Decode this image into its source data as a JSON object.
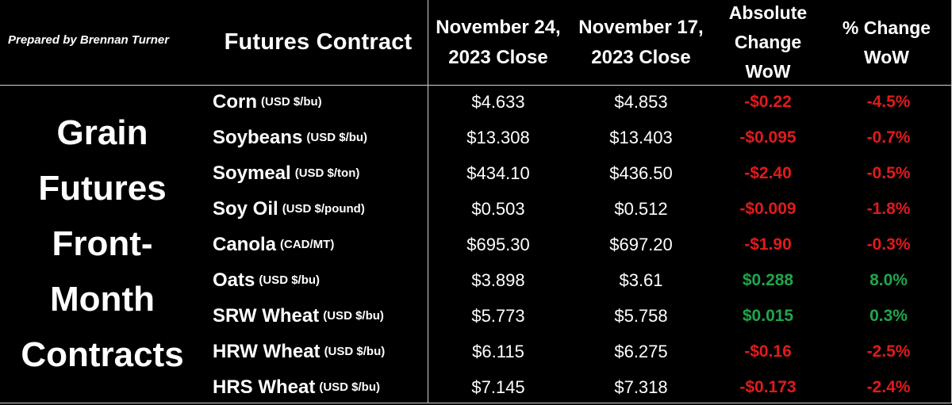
{
  "prepared_by": "Prepared by Brennan Turner",
  "header": {
    "contract": "Futures Contract",
    "nov24_line1": "November 24,",
    "nov24_line2": "2023 Close",
    "nov17_line1": "November 17,",
    "nov17_line2": "2023 Close",
    "abs_line1": "Absolute",
    "abs_line2": "Change",
    "abs_line3": "WoW",
    "pct_line1": "% Change",
    "pct_line2": "WoW"
  },
  "side_title": {
    "line1": "Grain",
    "line2": "Futures",
    "line3": "Front-",
    "line4": "Month",
    "line5": "Contracts"
  },
  "colors": {
    "negative": "#e01b1b",
    "positive": "#1fa64a",
    "background": "#000000",
    "text": "#ffffff"
  },
  "rows": [
    {
      "name": "Corn",
      "unit": "(USD $/bu)",
      "nov24": "$4.633",
      "nov17": "$4.853",
      "abs": "-$0.22",
      "pct": "-4.5%",
      "dir": "negative"
    },
    {
      "name": "Soybeans",
      "unit": "(USD $/bu)",
      "nov24": "$13.308",
      "nov17": "$13.403",
      "abs": "-$0.095",
      "pct": "-0.7%",
      "dir": "negative"
    },
    {
      "name": "Soymeal",
      "unit": "(USD $/ton)",
      "nov24": "$434.10",
      "nov17": "$436.50",
      "abs": "-$2.40",
      "pct": "-0.5%",
      "dir": "negative"
    },
    {
      "name": "Soy Oil",
      "unit": "(USD $/pound)",
      "nov24": "$0.503",
      "nov17": "$0.512",
      "abs": "-$0.009",
      "pct": "-1.8%",
      "dir": "negative"
    },
    {
      "name": "Canola",
      "unit": "(CAD/MT)",
      "nov24": "$695.30",
      "nov17": "$697.20",
      "abs": "-$1.90",
      "pct": "-0.3%",
      "dir": "negative"
    },
    {
      "name": "Oats",
      "unit": "(USD $/bu)",
      "nov24": "$3.898",
      "nov17": "$3.61",
      "abs": "$0.288",
      "pct": "8.0%",
      "dir": "positive"
    },
    {
      "name": "SRW Wheat",
      "unit": "(USD $/bu)",
      "nov24": "$5.773",
      "nov17": "$5.758",
      "abs": "$0.015",
      "pct": "0.3%",
      "dir": "positive"
    },
    {
      "name": "HRW Wheat",
      "unit": "(USD $/bu)",
      "nov24": "$6.115",
      "nov17": "$6.275",
      "abs": "-$0.16",
      "pct": "-2.5%",
      "dir": "negative"
    },
    {
      "name": "HRS Wheat",
      "unit": "(USD $/bu)",
      "nov24": "$7.145",
      "nov17": "$7.318",
      "abs": "-$0.173",
      "pct": "-2.4%",
      "dir": "negative"
    }
  ]
}
